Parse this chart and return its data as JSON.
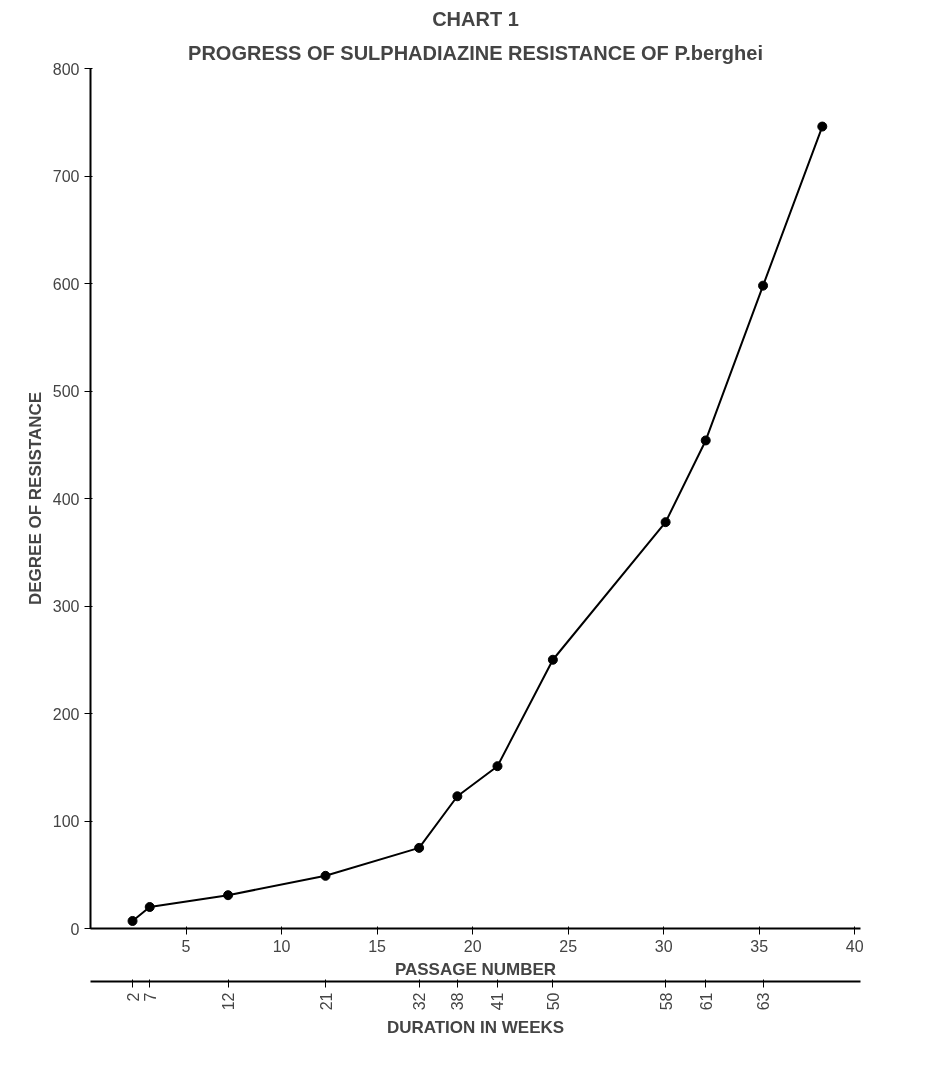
{
  "chart_data": {
    "type": "line",
    "title": "CHART 1",
    "subtitle": "PROGRESS OF SULPHADIAZINE RESISTANCE OF P.berghei",
    "xlabel": "PASSAGE NUMBER",
    "ylabel": "DEGREE OF RESISTANCE",
    "x2label": "DURATION IN WEEKS",
    "x": [
      2.2,
      3.1,
      7.2,
      12.3,
      17.2,
      19.2,
      21.3,
      24.2,
      30.1,
      32.2,
      35.2,
      38.3
    ],
    "series": [
      {
        "color": "#000000",
        "values": [
          7,
          20,
          31,
          49,
          75,
          123,
          151,
          250,
          378,
          454,
          598,
          746
        ]
      }
    ],
    "xlim": [
      0,
      40.3
    ],
    "xticks": [
      5,
      10,
      15,
      20,
      25,
      30,
      35,
      40
    ],
    "ylim": [
      0,
      800
    ],
    "yticks": [
      0,
      100,
      200,
      300,
      400,
      500,
      600,
      700,
      800
    ],
    "annotations": [
      "2",
      "7",
      "12",
      "21",
      "32",
      "38",
      "41",
      "50",
      "58",
      "61",
      "63"
    ],
    "grid": false,
    "marker": "circle",
    "line_style": "solid"
  }
}
